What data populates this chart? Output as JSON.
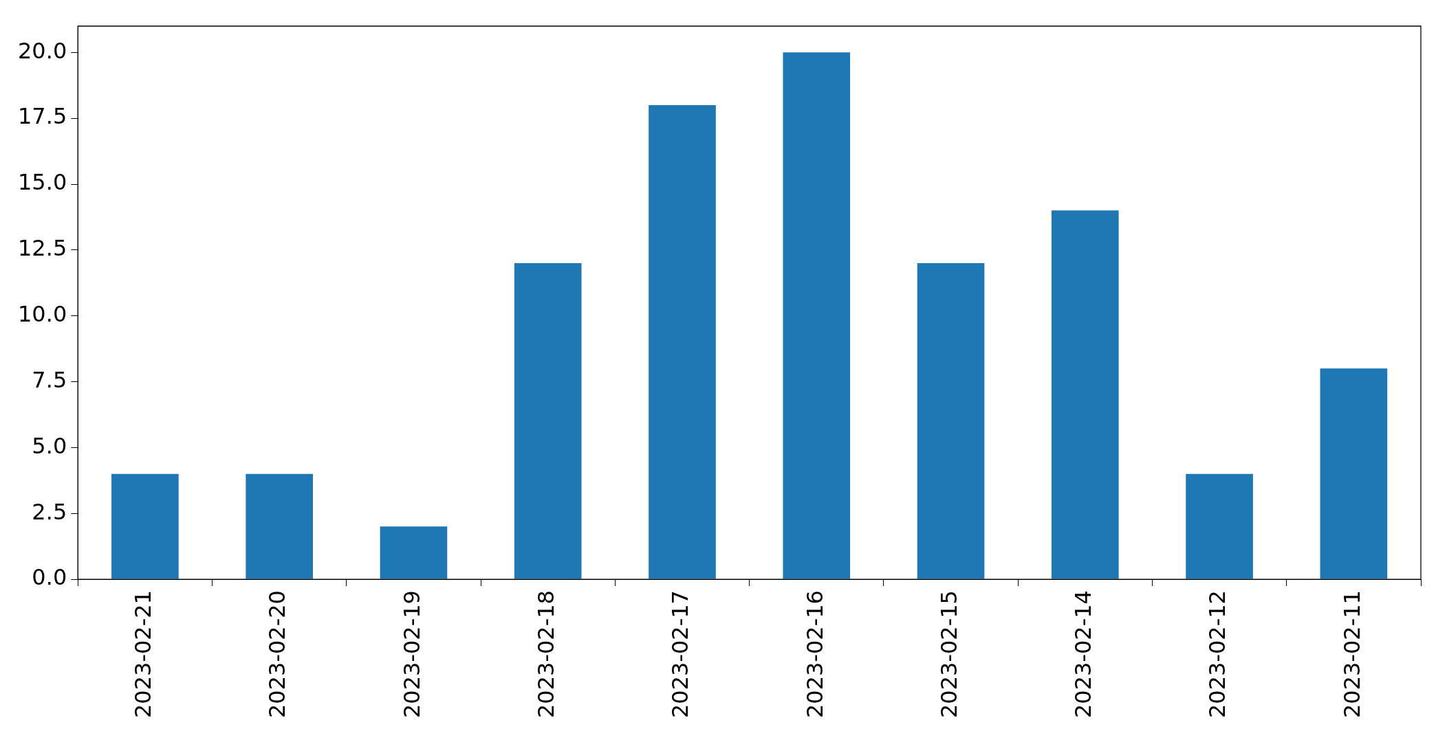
{
  "chart_data": {
    "type": "bar",
    "categories": [
      "2023-02-21",
      "2023-02-20",
      "2023-02-19",
      "2023-02-18",
      "2023-02-17",
      "2023-02-16",
      "2023-02-15",
      "2023-02-14",
      "2023-02-12",
      "2023-02-11"
    ],
    "values": [
      4,
      4,
      2,
      12,
      18,
      20,
      12,
      14,
      4,
      8
    ],
    "color": "#1f77b4",
    "ylim": [
      0,
      21
    ],
    "yticks": [
      {
        "value": 0,
        "label": "0.0"
      },
      {
        "value": 2.5,
        "label": "2.5"
      },
      {
        "value": 5,
        "label": "5.0"
      },
      {
        "value": 7.5,
        "label": "7.5"
      },
      {
        "value": 10,
        "label": "10.0"
      },
      {
        "value": 12.5,
        "label": "12.5"
      },
      {
        "value": 15,
        "label": "15.0"
      },
      {
        "value": 17.5,
        "label": "17.5"
      },
      {
        "value": 20,
        "label": "20.0"
      }
    ],
    "grid": false,
    "legend": false
  }
}
